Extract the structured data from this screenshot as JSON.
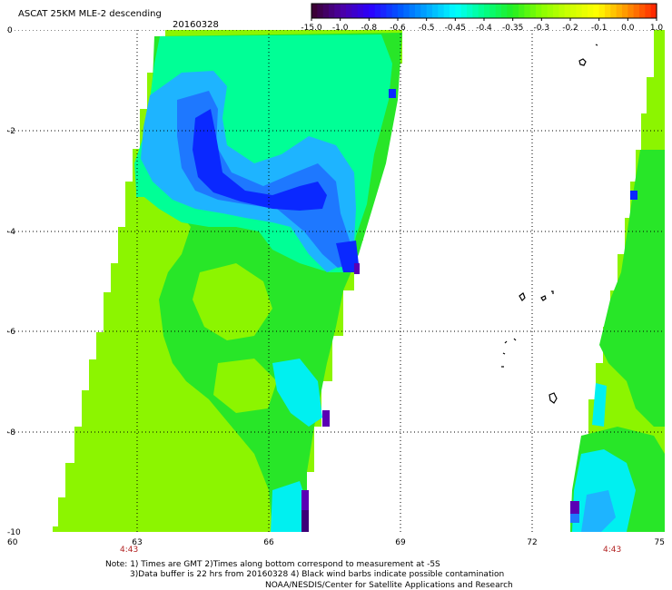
{
  "header": {
    "title": "ASCAT 25KM MLE-2 descending",
    "date": "20160328"
  },
  "colorbar": {
    "labels": [
      "-15.0",
      "-1.0",
      "-0.8",
      "-0.6",
      "-0.5",
      "-0.45",
      "-0.4",
      "-0.35",
      "-0.3",
      "-0.2",
      "-0.1",
      "0.0",
      "1.0"
    ],
    "colors": [
      "#3b0036",
      "#4b00a8",
      "#2b00ff",
      "#0055ff",
      "#00a8ff",
      "#00ffff",
      "#00ff88",
      "#22ee22",
      "#88ff00",
      "#ccff00",
      "#ffff00",
      "#ff9900",
      "#ff2a00"
    ]
  },
  "map": {
    "lat_labels": [
      "0",
      "-2",
      "-4",
      "-6",
      "-8",
      "-10"
    ],
    "lon_labels": [
      "60",
      "63",
      "66",
      "69",
      "72",
      "75"
    ],
    "time_labels": [
      "4:43",
      "4:43"
    ]
  },
  "notes": {
    "line1": "Note: 1) Times are GMT 2)Times along bottom correspond to measurement at -5S",
    "line2": "3)Data buffer is 22 hrs from 20160328 4) Black wind barbs indicate possible contamination",
    "line3": "NOAA/NESDIS/Center for Satellite Applications and Research"
  },
  "colors": {
    "blue_dark": "#0a28ff",
    "blue": "#1e78ff",
    "blue_light": "#1eb4ff",
    "cyan": "#00f0f0",
    "green_cyan": "#00ff96",
    "green": "#28e628",
    "green_yellow": "#8cf500",
    "violet": "#5a00b4",
    "purple_dark": "#3c0078"
  }
}
